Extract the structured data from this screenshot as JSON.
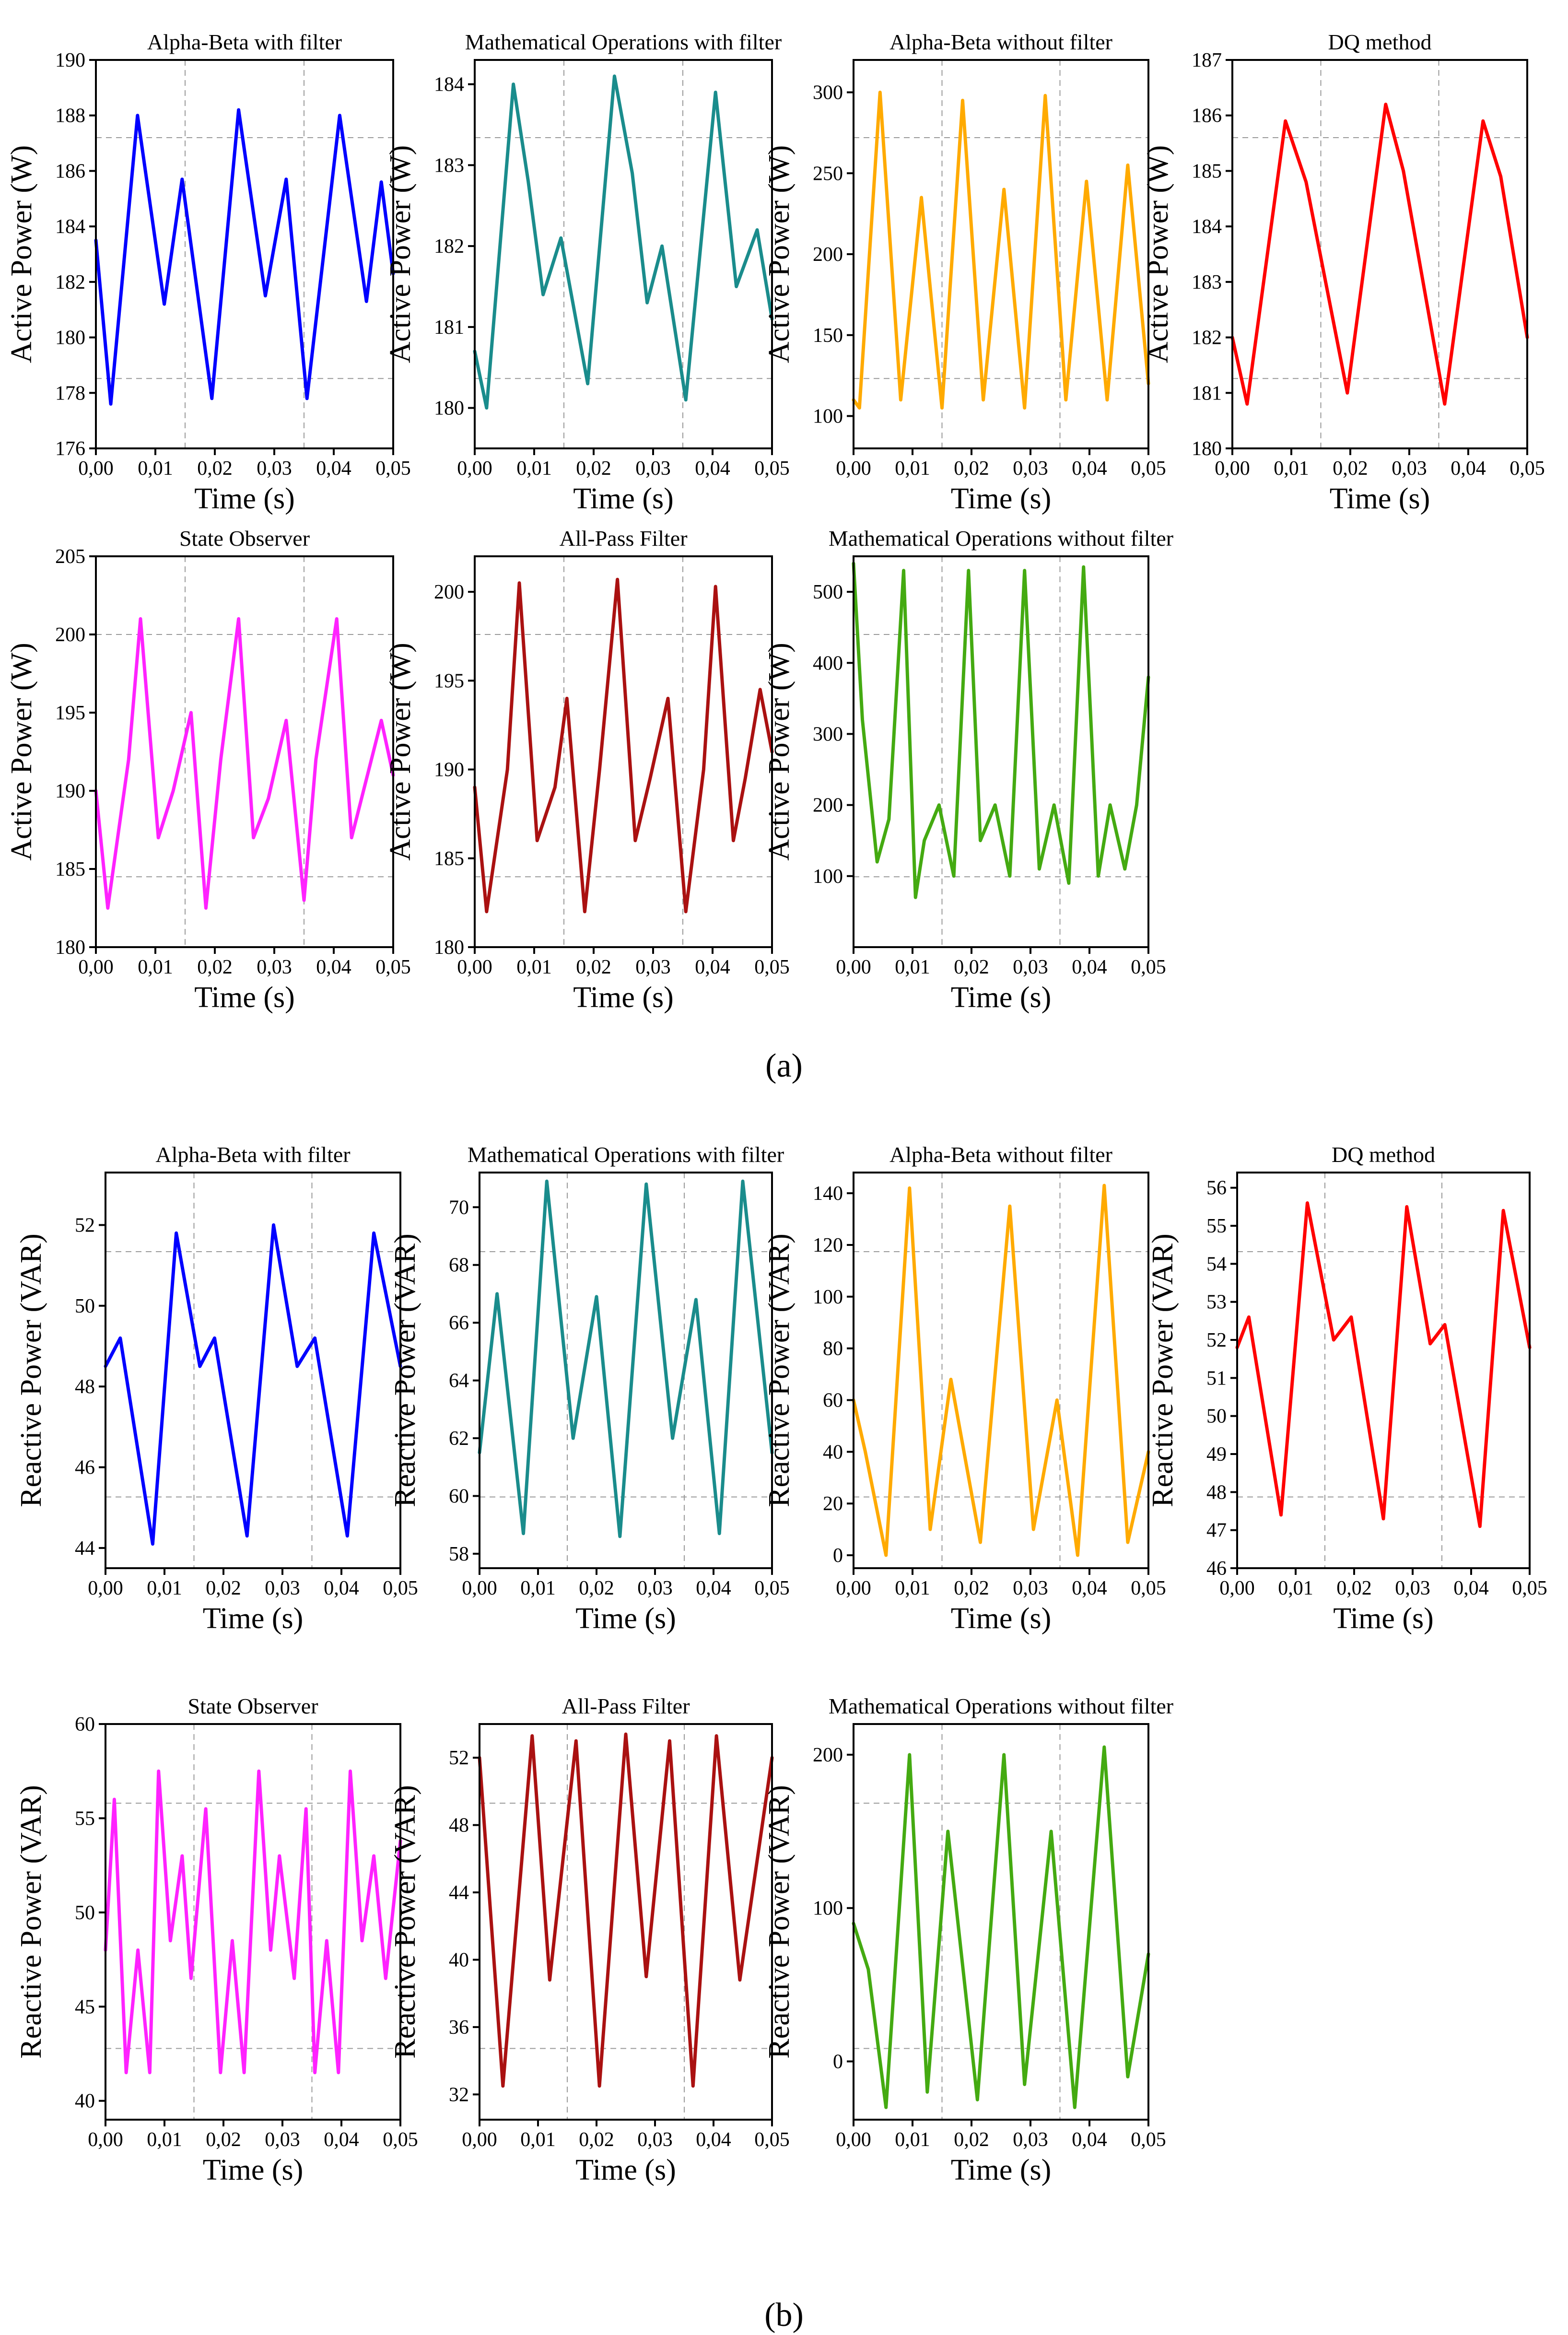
{
  "panel_labels": {
    "a": "(a)",
    "b": "(b)"
  },
  "chart_data": [
    {
      "id": "a1",
      "type": "line",
      "group": "a",
      "title": "Alpha-Beta with filter",
      "xlabel": "Time (s)",
      "ylabel": "Active Power (W)",
      "xlim": [
        0,
        0.05
      ],
      "ylim": [
        176,
        190
      ],
      "xticks": [
        "0,00",
        "0,01",
        "0,02",
        "0,03",
        "0,04",
        "0,05"
      ],
      "yticks": [
        176,
        178,
        180,
        182,
        184,
        186,
        188,
        190
      ],
      "color": "#0000ff",
      "series": [
        {
          "name": "Alpha-Beta with filter",
          "x": [
            0,
            0.0025,
            0.007,
            0.0115,
            0.0145,
            0.0195,
            0.024,
            0.0285,
            0.032,
            0.0355,
            0.041,
            0.0455,
            0.048,
            0.05
          ],
          "y": [
            183.5,
            177.6,
            188.0,
            181.2,
            185.7,
            177.8,
            188.2,
            181.5,
            185.7,
            177.8,
            188.0,
            181.3,
            185.6,
            182.3
          ]
        }
      ]
    },
    {
      "id": "a2",
      "type": "line",
      "group": "a",
      "title": "Mathematical Operations with filter",
      "xlabel": "Time (s)",
      "ylabel": "Active Power (W)",
      "xlim": [
        0,
        0.05
      ],
      "ylim": [
        179.5,
        184.3
      ],
      "xticks": [
        "0,00",
        "0,01",
        "0,02",
        "0,03",
        "0,04",
        "0,05"
      ],
      "yticks": [
        180,
        181,
        182,
        183,
        184
      ],
      "color": "#1a8c8c",
      "series": [
        {
          "name": "Mathematical Operations with filter",
          "x": [
            0,
            0.002,
            0.0065,
            0.009,
            0.0115,
            0.0145,
            0.019,
            0.0235,
            0.0265,
            0.029,
            0.0315,
            0.0355,
            0.0405,
            0.044,
            0.0475,
            0.05
          ],
          "y": [
            180.7,
            180.0,
            184.0,
            182.8,
            181.4,
            182.1,
            180.3,
            184.1,
            182.9,
            181.3,
            182.0,
            180.1,
            183.9,
            181.5,
            182.2,
            181.1
          ]
        }
      ]
    },
    {
      "id": "a3",
      "type": "line",
      "group": "a",
      "title": "Alpha-Beta without filter",
      "xlabel": "Time (s)",
      "ylabel": "Active Power (W)",
      "xlim": [
        0,
        0.05
      ],
      "ylim": [
        80,
        320
      ],
      "xticks": [
        "0,00",
        "0,01",
        "0,02",
        "0,03",
        "0,04",
        "0,05"
      ],
      "yticks": [
        100,
        150,
        200,
        250,
        300
      ],
      "color": "#ffaa00",
      "series": [
        {
          "name": "Alpha-Beta without filter",
          "x": [
            0,
            0.001,
            0.0045,
            0.008,
            0.0115,
            0.015,
            0.0185,
            0.022,
            0.0255,
            0.029,
            0.0325,
            0.036,
            0.0395,
            0.043,
            0.0465,
            0.05
          ],
          "y": [
            110,
            105,
            300,
            110,
            235,
            105,
            295,
            110,
            240,
            105,
            298,
            110,
            245,
            110,
            255,
            120
          ]
        }
      ]
    },
    {
      "id": "a4",
      "type": "line",
      "group": "a",
      "title": "DQ method",
      "xlabel": "Time (s)",
      "ylabel": "Active Power (W)",
      "xlim": [
        0,
        0.05
      ],
      "ylim": [
        180,
        187
      ],
      "xticks": [
        "0,00",
        "0,01",
        "0,02",
        "0,03",
        "0,04",
        "0,05"
      ],
      "yticks": [
        180,
        181,
        182,
        183,
        184,
        185,
        186,
        187
      ],
      "color": "#ff0000",
      "series": [
        {
          "name": "DQ method",
          "x": [
            0,
            0.0025,
            0.009,
            0.0125,
            0.0195,
            0.026,
            0.029,
            0.036,
            0.0425,
            0.0455,
            0.05
          ],
          "y": [
            182.0,
            180.8,
            185.9,
            184.8,
            181.0,
            186.2,
            185.0,
            180.8,
            185.9,
            184.9,
            182.0
          ]
        }
      ]
    },
    {
      "id": "a5",
      "type": "line",
      "group": "a",
      "title": "State Observer",
      "xlabel": "Time (s)",
      "ylabel": "Active Power (W)",
      "xlim": [
        0,
        0.05
      ],
      "ylim": [
        180,
        205
      ],
      "xticks": [
        "0,00",
        "0,01",
        "0,02",
        "0,03",
        "0,04",
        "0,05"
      ],
      "yticks": [
        180,
        185,
        190,
        195,
        200,
        205
      ],
      "color": "#ff22ff",
      "series": [
        {
          "name": "State Observer",
          "x": [
            0,
            0.002,
            0.0055,
            0.0075,
            0.0105,
            0.013,
            0.016,
            0.0185,
            0.021,
            0.024,
            0.0265,
            0.029,
            0.032,
            0.035,
            0.037,
            0.0405,
            0.043,
            0.045,
            0.048,
            0.05
          ],
          "y": [
            190,
            182.5,
            192,
            201,
            187,
            190,
            195,
            182.5,
            192,
            201,
            187,
            189.5,
            194.5,
            183,
            192,
            201,
            187,
            190,
            194.5,
            191
          ]
        }
      ]
    },
    {
      "id": "a6",
      "type": "line",
      "group": "a",
      "title": "All-Pass Filter",
      "xlabel": "Time (s)",
      "ylabel": "Active Power (W)",
      "xlim": [
        0,
        0.05
      ],
      "ylim": [
        180,
        202
      ],
      "xticks": [
        "0,00",
        "0,01",
        "0,02",
        "0,03",
        "0,04",
        "0,05"
      ],
      "yticks": [
        180,
        185,
        190,
        195,
        200
      ],
      "color": "#aa1111",
      "series": [
        {
          "name": "All-Pass Filter",
          "x": [
            0,
            0.002,
            0.0055,
            0.0075,
            0.0105,
            0.0135,
            0.0155,
            0.0185,
            0.021,
            0.024,
            0.027,
            0.0295,
            0.0325,
            0.0355,
            0.0385,
            0.0405,
            0.0435,
            0.0455,
            0.048,
            0.05
          ],
          "y": [
            189,
            182,
            190,
            200.5,
            186,
            189,
            194,
            182,
            190,
            200.7,
            186,
            189.5,
            194,
            182,
            190,
            200.3,
            186,
            189.5,
            194.5,
            191
          ]
        }
      ]
    },
    {
      "id": "a7",
      "type": "line",
      "group": "a",
      "title": "Mathematical Operations without filter",
      "xlabel": "Time (s)",
      "ylabel": "Active Power (W)",
      "xlim": [
        0,
        0.05
      ],
      "ylim": [
        0,
        550
      ],
      "xticks": [
        "0,00",
        "0,01",
        "0,02",
        "0,03",
        "0,04",
        "0,05"
      ],
      "yticks": [
        100,
        200,
        300,
        400,
        500
      ],
      "color": "#44aa11",
      "series": [
        {
          "name": "Mathematical Operations without filter",
          "x": [
            0,
            0.0015,
            0.004,
            0.006,
            0.0085,
            0.0105,
            0.012,
            0.0145,
            0.017,
            0.0195,
            0.0215,
            0.024,
            0.0265,
            0.029,
            0.0315,
            0.034,
            0.0365,
            0.039,
            0.0415,
            0.0435,
            0.046,
            0.048,
            0.05
          ],
          "y": [
            540,
            320,
            120,
            180,
            530,
            70,
            150,
            200,
            100,
            530,
            150,
            200,
            100,
            530,
            110,
            200,
            90,
            535,
            100,
            200,
            110,
            200,
            380
          ]
        }
      ]
    },
    {
      "id": "b1",
      "type": "line",
      "group": "b",
      "title": "Alpha-Beta with filter",
      "xlabel": "Time (s)",
      "ylabel": "Reactive Power (VAR)",
      "xlim": [
        0,
        0.05
      ],
      "ylim": [
        43.5,
        53.3
      ],
      "xticks": [
        "0,00",
        "0,01",
        "0,02",
        "0,03",
        "0,04",
        "0,05"
      ],
      "yticks": [
        44,
        46,
        48,
        50,
        52
      ],
      "color": "#0000ff",
      "series": [
        {
          "name": "Alpha-Beta with filter",
          "x": [
            0,
            0.0025,
            0.008,
            0.012,
            0.016,
            0.0185,
            0.024,
            0.0285,
            0.0325,
            0.0355,
            0.041,
            0.0455,
            0.05
          ],
          "y": [
            48.5,
            49.2,
            44.1,
            51.8,
            48.5,
            49.2,
            44.3,
            52.0,
            48.5,
            49.2,
            44.3,
            51.8,
            48.5
          ]
        }
      ]
    },
    {
      "id": "b2",
      "type": "line",
      "group": "b",
      "title": "Mathematical Operations with filter",
      "xlabel": "Time (s)",
      "ylabel": "Reactive Power (VAR)",
      "xlim": [
        0,
        0.05
      ],
      "ylim": [
        57.5,
        71.2
      ],
      "xticks": [
        "0,00",
        "0,01",
        "0,02",
        "0,03",
        "0,04",
        "0,05"
      ],
      "yticks": [
        58,
        60,
        62,
        64,
        66,
        68,
        70
      ],
      "color": "#1a8c8c",
      "series": [
        {
          "name": "Mathematical Operations with filter",
          "x": [
            0,
            0.003,
            0.0075,
            0.0115,
            0.016,
            0.02,
            0.024,
            0.0285,
            0.033,
            0.037,
            0.041,
            0.045,
            0.05
          ],
          "y": [
            61.5,
            67,
            58.7,
            70.9,
            62,
            66.9,
            58.6,
            70.8,
            62,
            66.8,
            58.7,
            70.9,
            61.5
          ]
        }
      ]
    },
    {
      "id": "b3",
      "type": "line",
      "group": "b",
      "title": "Alpha-Beta without filter",
      "xlabel": "Time (s)",
      "ylabel": "Reactive Power (VAR)",
      "xlim": [
        0,
        0.05
      ],
      "ylim": [
        -5,
        148
      ],
      "xticks": [
        "0,00",
        "0,01",
        "0,02",
        "0,03",
        "0,04",
        "0,05"
      ],
      "yticks": [
        0,
        20,
        40,
        60,
        80,
        100,
        120,
        140
      ],
      "color": "#ffaa00",
      "series": [
        {
          "name": "Alpha-Beta without filter",
          "x": [
            0,
            0.002,
            0.0055,
            0.0095,
            0.013,
            0.0165,
            0.0215,
            0.0265,
            0.0305,
            0.0345,
            0.038,
            0.0425,
            0.0465,
            0.05
          ],
          "y": [
            60,
            40,
            0,
            142,
            10,
            68,
            5,
            135,
            10,
            60,
            0,
            143,
            5,
            40
          ]
        }
      ]
    },
    {
      "id": "b4",
      "type": "line",
      "group": "b",
      "title": "DQ method",
      "xlabel": "Time (s)",
      "ylabel": "Reactive Power (VAR)",
      "xlim": [
        0,
        0.05
      ],
      "ylim": [
        46,
        56.4
      ],
      "xticks": [
        "0,00",
        "0,01",
        "0,02",
        "0,03",
        "0,04",
        "0,05"
      ],
      "yticks": [
        46,
        47,
        48,
        49,
        50,
        51,
        52,
        53,
        54,
        55,
        56
      ],
      "color": "#ff0000",
      "series": [
        {
          "name": "DQ method",
          "x": [
            0,
            0.002,
            0.0075,
            0.012,
            0.0165,
            0.0195,
            0.025,
            0.029,
            0.033,
            0.0355,
            0.0415,
            0.0455,
            0.05
          ],
          "y": [
            51.8,
            52.6,
            47.4,
            55.6,
            52.0,
            52.6,
            47.3,
            55.5,
            51.9,
            52.4,
            47.1,
            55.4,
            51.8
          ]
        }
      ]
    },
    {
      "id": "b5",
      "type": "line",
      "group": "b",
      "title": "State Observer",
      "xlabel": "Time (s)",
      "ylabel": "Reactive Power (VAR)",
      "xlim": [
        0,
        0.05
      ],
      "ylim": [
        39,
        60
      ],
      "xticks": [
        "0,00",
        "0,01",
        "0,02",
        "0,03",
        "0,04",
        "0,05"
      ],
      "yticks": [
        40,
        45,
        50,
        55,
        60
      ],
      "color": "#ff22ff",
      "series": [
        {
          "name": "State Observer",
          "x": [
            0,
            0.0015,
            0.0035,
            0.0055,
            0.0075,
            0.009,
            0.011,
            0.013,
            0.0145,
            0.017,
            0.0195,
            0.0215,
            0.0235,
            0.026,
            0.028,
            0.0295,
            0.032,
            0.034,
            0.0355,
            0.0375,
            0.0395,
            0.0415,
            0.0435,
            0.0455,
            0.0475,
            0.05
          ],
          "y": [
            48,
            56,
            41.5,
            48,
            41.5,
            57.5,
            48.5,
            53,
            46.5,
            55.5,
            41.5,
            48.5,
            41.5,
            57.5,
            48,
            53,
            46.5,
            55.5,
            41.5,
            48.5,
            41.5,
            57.5,
            48.5,
            53,
            46.5,
            53.8
          ]
        }
      ]
    },
    {
      "id": "b6",
      "type": "line",
      "group": "b",
      "title": "All-Pass Filter",
      "xlabel": "Time (s)",
      "ylabel": "Reactive Power (VAR)",
      "xlim": [
        0,
        0.05
      ],
      "ylim": [
        30.5,
        54
      ],
      "xticks": [
        "0,00",
        "0,01",
        "0,02",
        "0,03",
        "0,04",
        "0,05"
      ],
      "yticks": [
        32,
        36,
        40,
        44,
        48,
        52
      ],
      "color": "#aa1111",
      "series": [
        {
          "name": "All-Pass Filter",
          "x": [
            0,
            0.004,
            0.009,
            0.012,
            0.0165,
            0.0205,
            0.025,
            0.0285,
            0.0325,
            0.0365,
            0.0405,
            0.0445,
            0.05
          ],
          "y": [
            52,
            32.5,
            53.3,
            38.8,
            53,
            32.5,
            53.4,
            39,
            53,
            32.5,
            53.3,
            38.8,
            52
          ]
        }
      ]
    },
    {
      "id": "b7",
      "type": "line",
      "group": "b",
      "title": "Mathematical Operations without filter",
      "xlabel": "Time (s)",
      "ylabel": "Reactive Power (VAR)",
      "xlim": [
        0,
        0.05
      ],
      "ylim": [
        -38,
        220
      ],
      "xticks": [
        "0,00",
        "0,01",
        "0,02",
        "0,03",
        "0,04",
        "0,05"
      ],
      "yticks": [
        0,
        100,
        200
      ],
      "color": "#44aa11",
      "series": [
        {
          "name": "Mathematical Operations without filter",
          "x": [
            0,
            0.0025,
            0.0055,
            0.0095,
            0.0125,
            0.016,
            0.021,
            0.0255,
            0.029,
            0.0335,
            0.0375,
            0.0425,
            0.0465,
            0.05
          ],
          "y": [
            90,
            60,
            -30,
            200,
            -20,
            150,
            -25,
            200,
            -15,
            150,
            -30,
            205,
            -10,
            70
          ]
        }
      ]
    }
  ]
}
